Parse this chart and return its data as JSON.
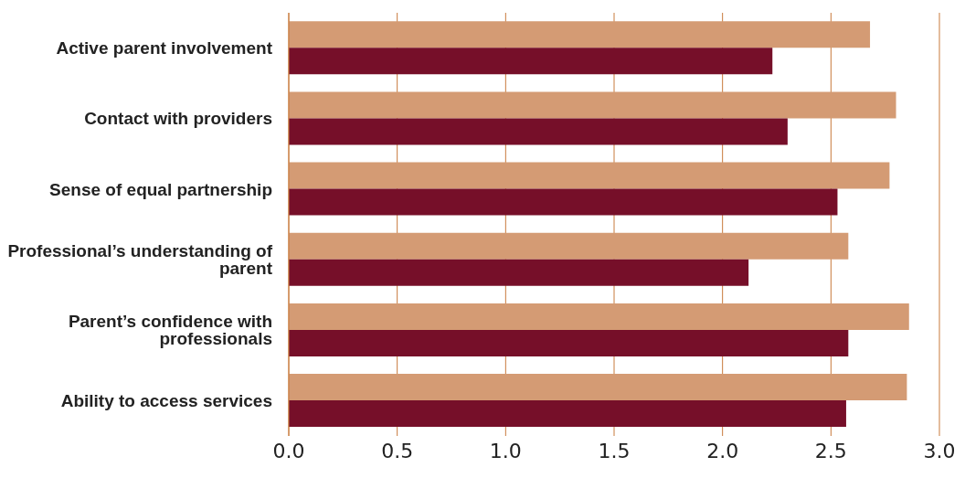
{
  "chart_data": {
    "type": "bar",
    "orientation": "horizontal",
    "categories": [
      "Active parent involvement",
      "Contact with providers",
      "Sense of equal partnership",
      "Professional’s understanding of parent",
      "Parent’s confidence with professionals",
      "Ability to access services"
    ],
    "series": [
      {
        "color": "#d49b74",
        "values": [
          2.68,
          2.8,
          2.77,
          2.58,
          2.86,
          2.85
        ]
      },
      {
        "color": "#760f29",
        "values": [
          2.23,
          2.3,
          2.53,
          2.12,
          2.58,
          2.57
        ]
      }
    ],
    "xlim": [
      0,
      3.0
    ],
    "xticks": [
      {
        "value": 0,
        "label": "0.0"
      },
      {
        "value": 0.5,
        "label": "0.5"
      },
      {
        "value": 1,
        "label": "1.0"
      },
      {
        "value": 1.5,
        "label": "1.5"
      },
      {
        "value": 2,
        "label": "2.0"
      },
      {
        "value": 2.5,
        "label": "2.5"
      },
      {
        "value": 3,
        "label": "3.0"
      }
    ],
    "grid": "x"
  }
}
